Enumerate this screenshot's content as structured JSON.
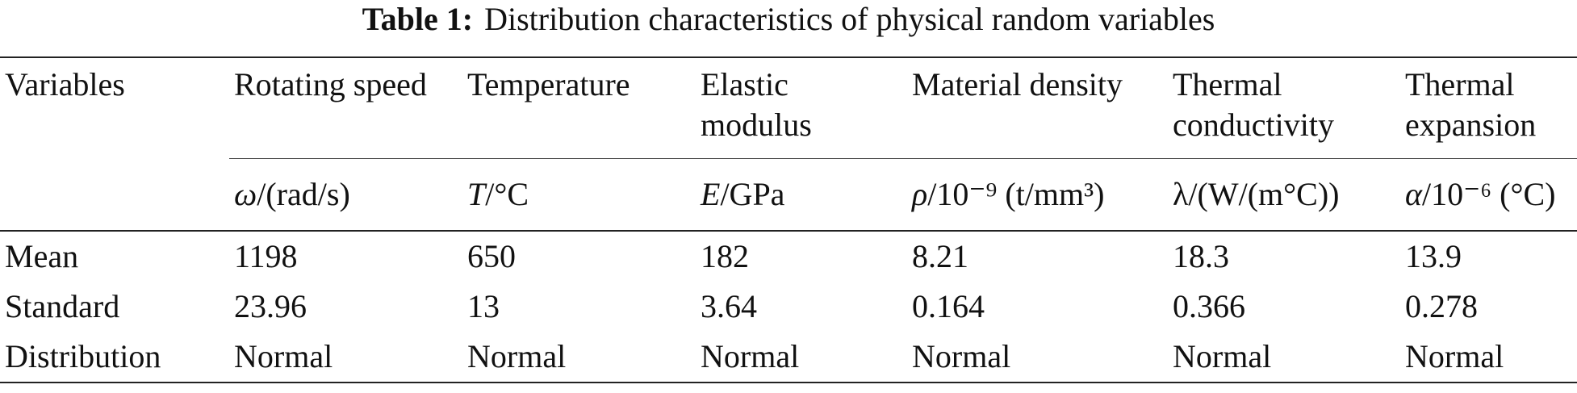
{
  "title": {
    "label": "Table 1:",
    "text": "Distribution characteristics of physical random variables"
  },
  "table": {
    "header": [
      "Variables",
      "Rotating speed",
      "Temperature",
      "Elastic modulus",
      "Material density",
      "Thermal conductivity",
      "Thermal expansion"
    ],
    "units": [
      {
        "symbol": "ω",
        "rest": "/(rad/s)"
      },
      {
        "symbol": "T",
        "rest": "/°C"
      },
      {
        "symbol": "E",
        "rest": "/GPa"
      },
      {
        "symbol": "ρ",
        "rest": "/10⁻⁹ (t/mm³)"
      },
      {
        "symbol": "λ",
        "rest": "/(W/(m°C))"
      },
      {
        "symbol": "α",
        "rest": "/10⁻⁶ (°C)"
      }
    ],
    "rows": [
      [
        "Mean",
        "1198",
        "650",
        "182",
        "8.21",
        "18.3",
        "13.9"
      ],
      [
        "Standard",
        "23.96",
        "13",
        "3.64",
        "0.164",
        "0.366",
        "0.278"
      ],
      [
        "Distribution",
        "Normal",
        "Normal",
        "Normal",
        "Normal",
        "Normal",
        "Normal"
      ]
    ]
  }
}
